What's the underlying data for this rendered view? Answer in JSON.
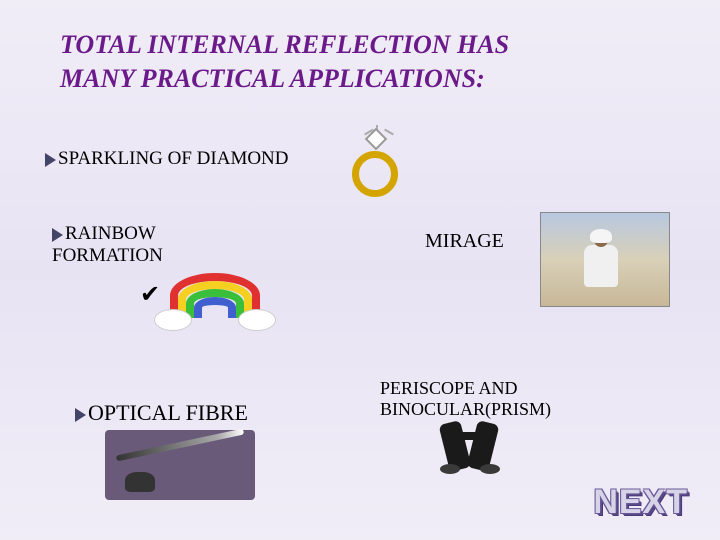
{
  "title_line1": "TOTAL INTERNAL REFLECTION HAS",
  "title_line2": "MANY  PRACTICAL APPLICATIONS:",
  "items": {
    "diamond": "SPARKLING   OF  DIAMOND",
    "rainbow_l1": "RAINBOW",
    "rainbow_l2": "FORMATION",
    "mirage": "MIRAGE",
    "periscope_l1": "PERISCOPE  AND",
    "periscope_l2": "BINOCULAR(PRISM)",
    "fibre": "OPTICAL  FIBRE"
  },
  "next_label": "NEXT",
  "colors": {
    "title": "#6b1a8a",
    "bullet": "#444466",
    "bg_top": "#f0edf7",
    "bg_mid": "#e8e3f3"
  },
  "rainbow_colors": [
    "#e03030",
    "#f5d020",
    "#3abf3a",
    "#4060d0"
  ]
}
